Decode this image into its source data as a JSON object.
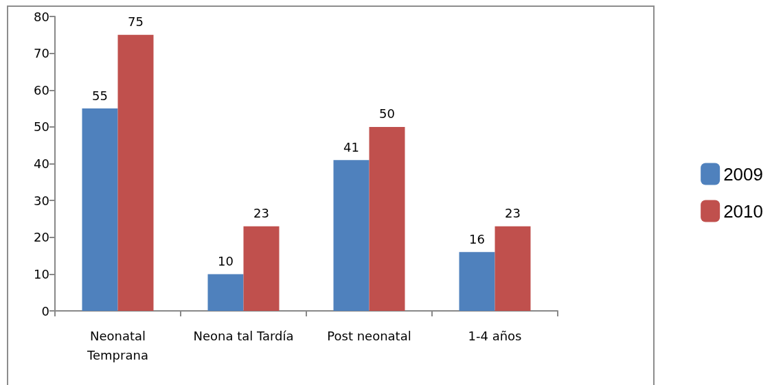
{
  "chart_data": {
    "type": "bar",
    "categories": [
      "Neonatal\nTemprana",
      "Neona tal Tardía",
      "Post neonatal",
      "1-4 años"
    ],
    "series": [
      {
        "name": "2009",
        "color": "#4f81bd",
        "values": [
          55,
          10,
          41,
          16
        ]
      },
      {
        "name": "2010",
        "color": "#c0504d",
        "values": [
          75,
          23,
          50,
          23
        ]
      }
    ],
    "ylim": [
      0,
      80
    ],
    "yticks": [
      0,
      10,
      20,
      30,
      40,
      50,
      60,
      70,
      80
    ],
    "grid": false,
    "legend": "right",
    "data_labels": true
  }
}
